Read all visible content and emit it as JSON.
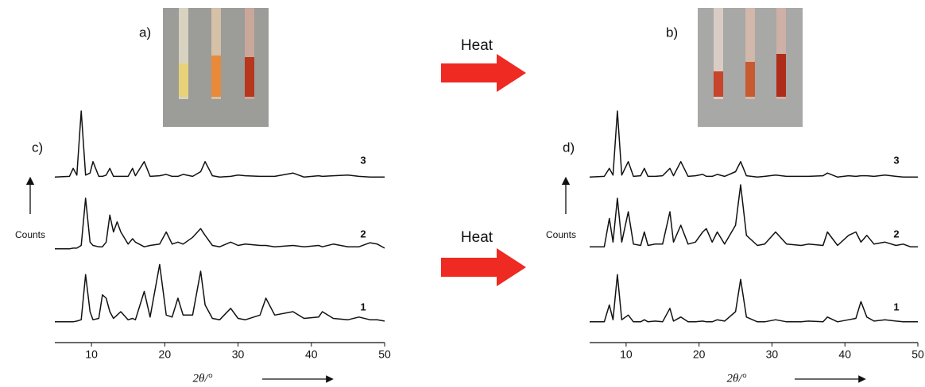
{
  "figure": {
    "photo_labels": [
      "a)",
      "b)"
    ],
    "arrows": [
      "Heat",
      "Heat"
    ]
  },
  "chart_data": [
    {
      "type": "line",
      "title": "c)",
      "ylabel": "Counts",
      "xlabel": "2θ/°",
      "x": [
        5,
        7,
        7.5,
        8,
        8.6,
        9.2,
        9.8,
        10.2,
        11,
        11.5,
        12,
        12.5,
        13,
        13.5,
        14,
        15,
        15.6,
        16,
        17.2,
        18,
        19.3,
        20.2,
        21,
        21.8,
        22.5,
        23.8,
        24.9,
        25.5,
        26.5,
        27.5,
        29,
        30,
        31,
        33,
        33.8,
        35,
        37.5,
        39,
        41,
        41.5,
        43,
        45,
        46.5,
        48,
        49,
        50
      ],
      "xlim": [
        5,
        50
      ],
      "xticks": [
        10,
        20,
        30,
        40,
        50
      ],
      "ylim": [
        0,
        100
      ],
      "series": [
        {
          "name": "1",
          "color": "#111111",
          "values": [
            5,
            5,
            5,
            6,
            8,
            75,
            20,
            8,
            10,
            45,
            40,
            20,
            10,
            15,
            20,
            8,
            10,
            8,
            50,
            12,
            90,
            15,
            12,
            40,
            15,
            15,
            80,
            30,
            10,
            8,
            25,
            10,
            8,
            15,
            40,
            15,
            20,
            10,
            12,
            20,
            10,
            8,
            12,
            8,
            8,
            6
          ]
        },
        {
          "name": "2",
          "color": "#111111",
          "values": [
            5,
            5,
            6,
            6,
            10,
            80,
            15,
            10,
            8,
            8,
            15,
            55,
            30,
            45,
            30,
            12,
            20,
            15,
            8,
            10,
            12,
            30,
            12,
            15,
            12,
            22,
            35,
            25,
            10,
            8,
            15,
            10,
            12,
            10,
            10,
            8,
            10,
            8,
            10,
            8,
            12,
            8,
            8,
            14,
            12,
            6
          ]
        },
        {
          "name": "3",
          "color": "#111111",
          "values": [
            2,
            3,
            15,
            5,
            100,
            5,
            8,
            25,
            3,
            3,
            5,
            15,
            3,
            3,
            3,
            3,
            15,
            4,
            25,
            3,
            4,
            6,
            3,
            3,
            6,
            3,
            10,
            25,
            4,
            2,
            3,
            5,
            4,
            3,
            3,
            3,
            8,
            2,
            4,
            3,
            4,
            5,
            3,
            2,
            2,
            2
          ]
        }
      ]
    },
    {
      "type": "line",
      "title": "d)",
      "ylabel": "Counts",
      "xlabel": "2θ/°",
      "x": [
        5,
        7,
        7.7,
        8.2,
        8.8,
        9.4,
        10.3,
        11,
        12,
        12.5,
        13,
        14,
        15,
        16,
        16.5,
        17.5,
        18.5,
        19.5,
        20.5,
        21,
        21.8,
        22.5,
        23.5,
        25,
        25.7,
        26.5,
        28,
        29,
        30.5,
        32,
        34,
        35,
        37,
        37.6,
        39,
        40.5,
        41.5,
        42.2,
        43,
        44,
        45.5,
        47,
        48,
        49,
        50
      ],
      "xlim": [
        5,
        50
      ],
      "xticks": [
        10,
        20,
        30,
        40,
        50
      ],
      "ylim": [
        0,
        100
      ],
      "series": [
        {
          "name": "1",
          "color": "#111111",
          "values": [
            5,
            5,
            30,
            8,
            75,
            8,
            15,
            5,
            5,
            8,
            5,
            6,
            5,
            25,
            6,
            12,
            5,
            5,
            6,
            5,
            5,
            8,
            6,
            20,
            68,
            12,
            5,
            5,
            8,
            5,
            5,
            6,
            5,
            12,
            5,
            8,
            10,
            35,
            12,
            6,
            8,
            6,
            5,
            5,
            5
          ]
        },
        {
          "name": "2",
          "color": "#111111",
          "values": [
            8,
            8,
            50,
            15,
            80,
            15,
            60,
            12,
            10,
            30,
            10,
            12,
            12,
            60,
            15,
            40,
            12,
            15,
            30,
            35,
            15,
            30,
            12,
            40,
            100,
            25,
            10,
            12,
            30,
            12,
            10,
            12,
            10,
            30,
            10,
            25,
            30,
            15,
            25,
            12,
            15,
            10,
            12,
            8,
            8
          ]
        },
        {
          "name": "3",
          "color": "#111111",
          "values": [
            2,
            3,
            15,
            5,
            100,
            5,
            25,
            3,
            4,
            15,
            3,
            3,
            4,
            15,
            4,
            25,
            3,
            4,
            6,
            3,
            3,
            6,
            3,
            10,
            25,
            4,
            2,
            3,
            5,
            3,
            3,
            3,
            4,
            8,
            2,
            4,
            3,
            4,
            4,
            3,
            5,
            3,
            2,
            2,
            2
          ]
        }
      ]
    }
  ]
}
